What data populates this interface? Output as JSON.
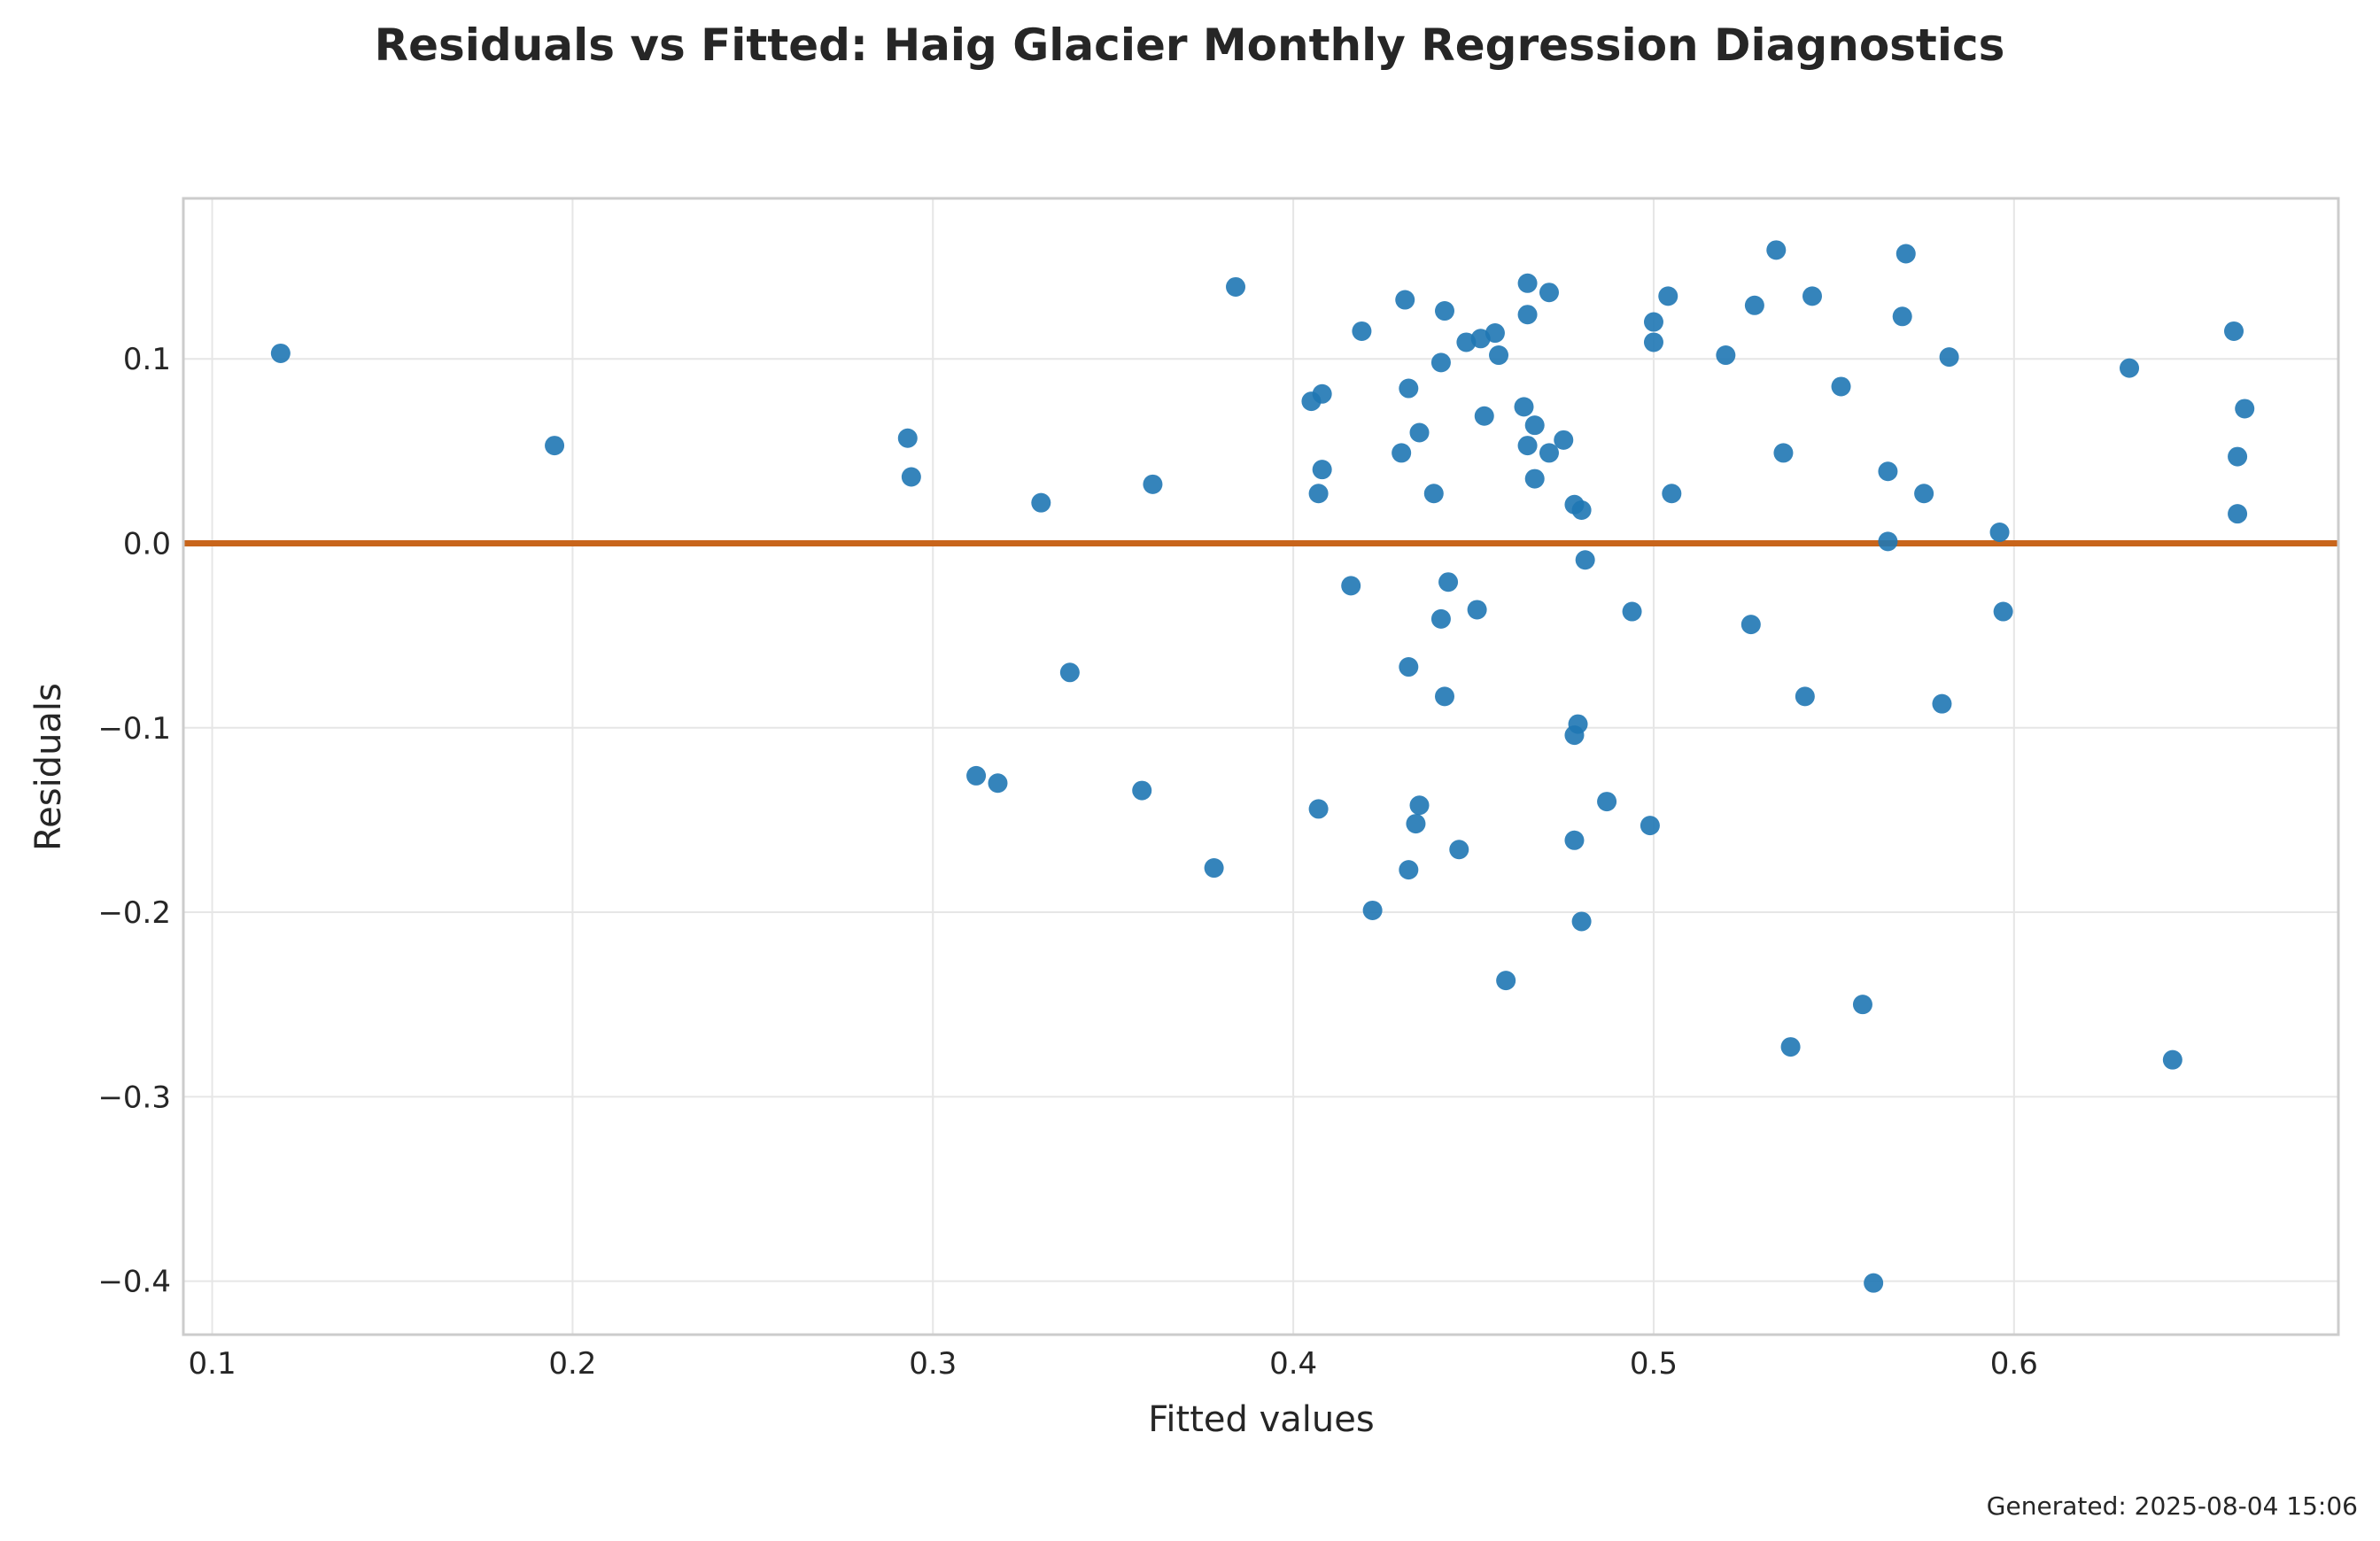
{
  "colors": {
    "points": "#1f77b4",
    "zero_line": "#c8651b"
  },
  "chart_data": {
    "type": "scatter",
    "title": "Residuals vs Fitted: Haig Glacier Monthly Regression Diagnostics",
    "xlabel": "Fitted values",
    "ylabel": "Residuals",
    "xlim": [
      0.092,
      0.69
    ],
    "ylim": [
      -0.429,
      0.187
    ],
    "xticks": [
      0.1,
      0.2,
      0.3,
      0.4,
      0.5,
      0.6
    ],
    "xtick_labels": [
      "0.1",
      "0.2",
      "0.3",
      "0.4",
      "0.5",
      "0.6"
    ],
    "yticks": [
      0.1,
      0.0,
      -0.1,
      -0.2,
      -0.3,
      -0.4
    ],
    "ytick_labels": [
      "0.1",
      "0.0",
      "−0.1",
      "−0.2",
      "−0.3",
      "−0.4"
    ],
    "grid": true,
    "reference_line_y": 0,
    "footer": "Generated: 2025-08-04 15:06",
    "points": [
      {
        "x": 0.119,
        "y": 0.103
      },
      {
        "x": 0.195,
        "y": 0.053
      },
      {
        "x": 0.293,
        "y": 0.057
      },
      {
        "x": 0.294,
        "y": 0.036
      },
      {
        "x": 0.312,
        "y": -0.126
      },
      {
        "x": 0.318,
        "y": -0.13
      },
      {
        "x": 0.33,
        "y": 0.022
      },
      {
        "x": 0.338,
        "y": -0.07
      },
      {
        "x": 0.358,
        "y": -0.134
      },
      {
        "x": 0.361,
        "y": 0.032
      },
      {
        "x": 0.378,
        "y": -0.176
      },
      {
        "x": 0.384,
        "y": 0.139
      },
      {
        "x": 0.405,
        "y": 0.077
      },
      {
        "x": 0.407,
        "y": -0.144
      },
      {
        "x": 0.407,
        "y": 0.027
      },
      {
        "x": 0.408,
        "y": 0.04
      },
      {
        "x": 0.408,
        "y": 0.081
      },
      {
        "x": 0.416,
        "y": -0.023
      },
      {
        "x": 0.419,
        "y": 0.115
      },
      {
        "x": 0.422,
        "y": -0.199
      },
      {
        "x": 0.43,
        "y": 0.049
      },
      {
        "x": 0.431,
        "y": 0.132
      },
      {
        "x": 0.432,
        "y": -0.067
      },
      {
        "x": 0.432,
        "y": -0.177
      },
      {
        "x": 0.432,
        "y": 0.084
      },
      {
        "x": 0.434,
        "y": -0.152
      },
      {
        "x": 0.435,
        "y": -0.142
      },
      {
        "x": 0.435,
        "y": 0.06
      },
      {
        "x": 0.439,
        "y": 0.027
      },
      {
        "x": 0.441,
        "y": -0.041
      },
      {
        "x": 0.441,
        "y": 0.098
      },
      {
        "x": 0.442,
        "y": -0.083
      },
      {
        "x": 0.442,
        "y": 0.126
      },
      {
        "x": 0.443,
        "y": -0.021
      },
      {
        "x": 0.446,
        "y": -0.166
      },
      {
        "x": 0.448,
        "y": 0.109
      },
      {
        "x": 0.451,
        "y": -0.036
      },
      {
        "x": 0.452,
        "y": 0.111
      },
      {
        "x": 0.453,
        "y": 0.069
      },
      {
        "x": 0.456,
        "y": 0.114
      },
      {
        "x": 0.457,
        "y": 0.102
      },
      {
        "x": 0.459,
        "y": -0.237
      },
      {
        "x": 0.464,
        "y": 0.074
      },
      {
        "x": 0.465,
        "y": 0.053
      },
      {
        "x": 0.465,
        "y": 0.124
      },
      {
        "x": 0.465,
        "y": 0.141
      },
      {
        "x": 0.467,
        "y": 0.064
      },
      {
        "x": 0.467,
        "y": 0.035
      },
      {
        "x": 0.471,
        "y": 0.136
      },
      {
        "x": 0.471,
        "y": 0.049
      },
      {
        "x": 0.475,
        "y": 0.056
      },
      {
        "x": 0.478,
        "y": 0.021
      },
      {
        "x": 0.478,
        "y": -0.104
      },
      {
        "x": 0.478,
        "y": -0.161
      },
      {
        "x": 0.479,
        "y": -0.098
      },
      {
        "x": 0.48,
        "y": 0.018
      },
      {
        "x": 0.48,
        "y": -0.205
      },
      {
        "x": 0.481,
        "y": -0.009
      },
      {
        "x": 0.487,
        "y": -0.14
      },
      {
        "x": 0.494,
        "y": -0.037
      },
      {
        "x": 0.499,
        "y": -0.153
      },
      {
        "x": 0.5,
        "y": 0.109
      },
      {
        "x": 0.5,
        "y": 0.12
      },
      {
        "x": 0.504,
        "y": 0.134
      },
      {
        "x": 0.505,
        "y": 0.027
      },
      {
        "x": 0.52,
        "y": 0.102
      },
      {
        "x": 0.527,
        "y": -0.044
      },
      {
        "x": 0.528,
        "y": 0.129
      },
      {
        "x": 0.534,
        "y": 0.159
      },
      {
        "x": 0.536,
        "y": 0.049
      },
      {
        "x": 0.538,
        "y": -0.273
      },
      {
        "x": 0.542,
        "y": -0.083
      },
      {
        "x": 0.544,
        "y": 0.134
      },
      {
        "x": 0.552,
        "y": 0.085
      },
      {
        "x": 0.558,
        "y": -0.25
      },
      {
        "x": 0.561,
        "y": -0.401
      },
      {
        "x": 0.565,
        "y": 0.039
      },
      {
        "x": 0.565,
        "y": 0.001
      },
      {
        "x": 0.569,
        "y": 0.123
      },
      {
        "x": 0.57,
        "y": 0.157
      },
      {
        "x": 0.575,
        "y": 0.027
      },
      {
        "x": 0.58,
        "y": -0.087
      },
      {
        "x": 0.582,
        "y": 0.101
      },
      {
        "x": 0.596,
        "y": 0.006
      },
      {
        "x": 0.597,
        "y": -0.037
      },
      {
        "x": 0.632,
        "y": 0.095
      },
      {
        "x": 0.644,
        "y": -0.28
      },
      {
        "x": 0.661,
        "y": 0.115
      },
      {
        "x": 0.662,
        "y": 0.047
      },
      {
        "x": 0.662,
        "y": 0.016
      },
      {
        "x": 0.664,
        "y": 0.073
      }
    ]
  }
}
